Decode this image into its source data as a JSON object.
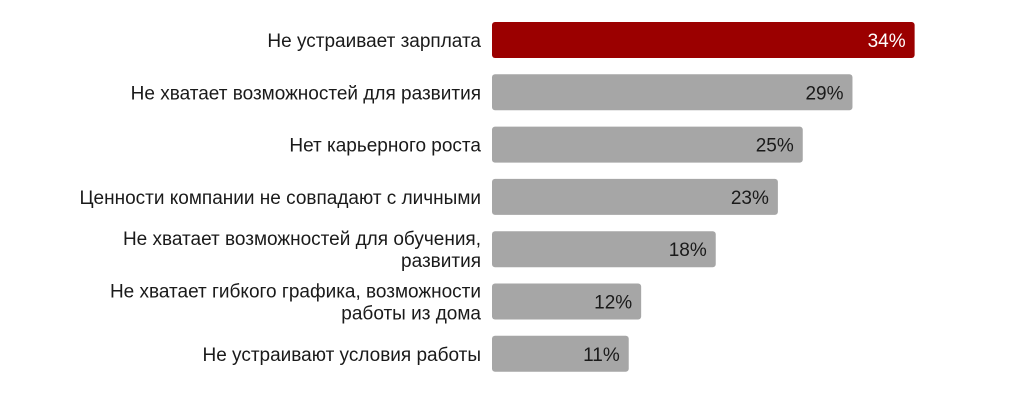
{
  "chart_data": {
    "type": "bar",
    "orientation": "horizontal",
    "categories": [
      "Не устраивает зарплата",
      "Не хватает возможностей для развития",
      "Нет карьерного роста",
      "Ценности компании не совпадают с личными",
      "Не хватает возможностей для обучения,\nразвития",
      "Не хватает гибкого графика, возможности\nработы из дома",
      "Не устраивают условия работы"
    ],
    "values": [
      34,
      29,
      25,
      23,
      18,
      12,
      11
    ],
    "value_labels": [
      "34%",
      "29%",
      "25%",
      "23%",
      "18%",
      "12%",
      "11%"
    ],
    "unit": "%",
    "title": "",
    "xlabel": "",
    "ylabel": "",
    "xlim": [
      0,
      42
    ],
    "grid": false,
    "legend": "none",
    "colors": {
      "highlight": "#9b0000",
      "default": "#a6a6a6",
      "highlight_label": "#ffffff",
      "default_label": "#1a1a1a"
    },
    "highlight_index": 0
  }
}
